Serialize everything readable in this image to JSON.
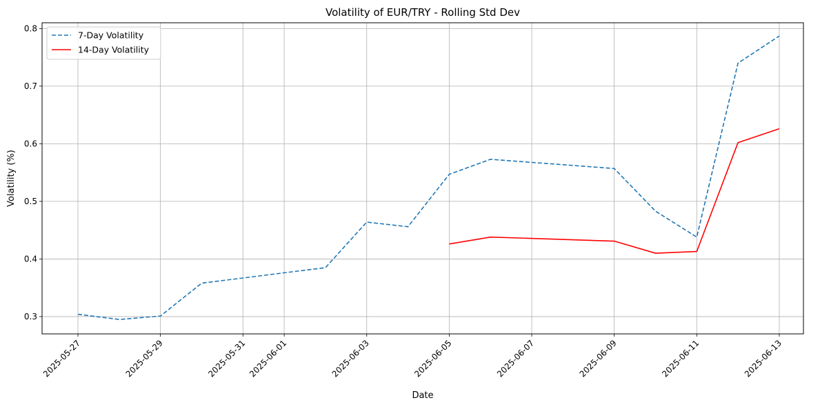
{
  "chart_data": {
    "type": "line",
    "title": "Volatility of EUR/TRY - Rolling Std Dev",
    "xlabel": "Date",
    "ylabel": "Volatility (%)",
    "x": [
      "2025-05-27",
      "2025-05-28",
      "2025-05-29",
      "2025-05-30",
      "2025-05-31",
      "2025-06-01",
      "2025-06-02",
      "2025-06-03",
      "2025-06-04",
      "2025-06-05",
      "2025-06-06",
      "2025-06-07",
      "2025-06-08",
      "2025-06-09",
      "2025-06-10",
      "2025-06-11",
      "2025-06-12",
      "2025-06-13"
    ],
    "x_ticks": [
      "2025-05-27",
      "2025-05-29",
      "2025-05-31",
      "2025-06-01",
      "2025-06-03",
      "2025-06-05",
      "2025-06-07",
      "2025-06-09",
      "2025-06-11",
      "2025-06-13"
    ],
    "ylim": [
      0.27,
      0.81
    ],
    "y_ticks": [
      "0.3",
      "0.4",
      "0.5",
      "0.6",
      "0.7",
      "0.8"
    ],
    "grid": true,
    "legend_position": "top-left",
    "series": [
      {
        "name": "7-Day Volatility",
        "color": "#1f77b4",
        "style": "dashed",
        "points": [
          {
            "x": "2025-05-27",
            "y": 0.304
          },
          {
            "x": "2025-05-28",
            "y": 0.295
          },
          {
            "x": "2025-05-29",
            "y": 0.301
          },
          {
            "x": "2025-05-30",
            "y": 0.358
          },
          {
            "x": "2025-06-02",
            "y": 0.385
          },
          {
            "x": "2025-06-03",
            "y": 0.464
          },
          {
            "x": "2025-06-04",
            "y": 0.456
          },
          {
            "x": "2025-06-05",
            "y": 0.547
          },
          {
            "x": "2025-06-06",
            "y": 0.573
          },
          {
            "x": "2025-06-09",
            "y": 0.557
          },
          {
            "x": "2025-06-10",
            "y": 0.483
          },
          {
            "x": "2025-06-11",
            "y": 0.438
          },
          {
            "x": "2025-06-12",
            "y": 0.74
          },
          {
            "x": "2025-06-13",
            "y": 0.787
          }
        ]
      },
      {
        "name": "14-Day Volatility",
        "color": "#ff0000",
        "style": "solid",
        "points": [
          {
            "x": "2025-06-05",
            "y": 0.426
          },
          {
            "x": "2025-06-06",
            "y": 0.438
          },
          {
            "x": "2025-06-09",
            "y": 0.431
          },
          {
            "x": "2025-06-10",
            "y": 0.41
          },
          {
            "x": "2025-06-11",
            "y": 0.413
          },
          {
            "x": "2025-06-12",
            "y": 0.602
          },
          {
            "x": "2025-06-13",
            "y": 0.626
          }
        ]
      }
    ]
  }
}
